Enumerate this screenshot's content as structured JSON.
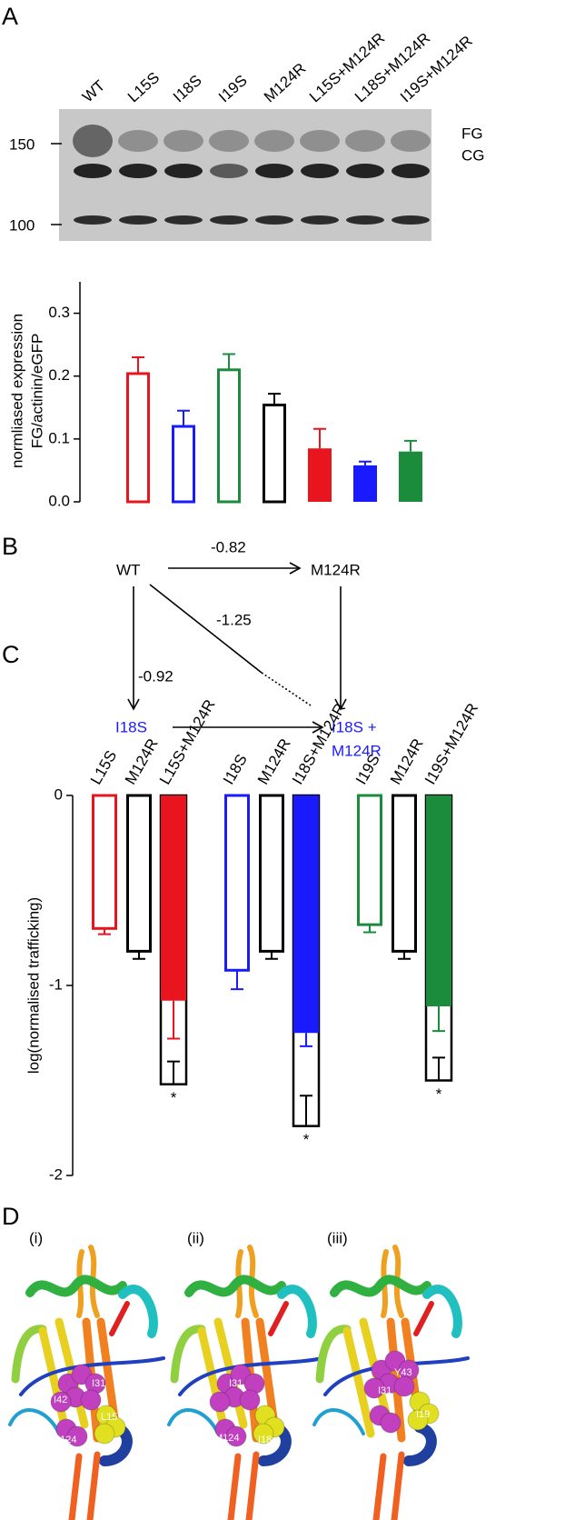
{
  "panels": [
    "A",
    "B",
    "C",
    "D"
  ],
  "blot": {
    "markers": [
      "150",
      "100"
    ],
    "bands": [
      "FG",
      "CG"
    ]
  },
  "chart_data": [
    {
      "type": "bar",
      "ylabel": [
        "normliased expression",
        "FG/actinin/eGFP"
      ],
      "categories": [
        "WT",
        "L15S",
        "I18S",
        "I19S",
        "M124R",
        "L15S+M124R",
        "L18S+M124R",
        "I19S+M124R"
      ],
      "values": [
        null,
        0.204,
        0.12,
        0.21,
        0.154,
        0.085,
        0.058,
        0.08
      ],
      "errors": [
        null,
        0.026,
        0.025,
        0.025,
        0.018,
        0.031,
        0.006,
        0.017
      ],
      "colors": [
        null,
        "#e8141e",
        "#1a1aff",
        "#1a8c3c",
        "#000000",
        "#e8141e",
        "#1a1aff",
        "#1a8c3c"
      ],
      "filled": [
        null,
        false,
        false,
        false,
        false,
        true,
        true,
        true
      ],
      "ylim": [
        0,
        0.35
      ],
      "yticks": [
        {
          "value": 0,
          "label": "0.0"
        },
        0.1,
        0.2,
        0.3
      ]
    },
    {
      "type": "bar",
      "ylabel": "log(normalised trafficking)",
      "categories": [
        "L15S",
        "M124R",
        "L15S+M124R",
        "I18S",
        "M124R",
        "I18S+M124R",
        "I19S",
        "M124R",
        "I19S+M124R"
      ],
      "values": [
        -0.7,
        -0.82,
        -1.08,
        -0.92,
        -0.82,
        -1.25,
        -0.68,
        -0.82,
        -1.11
      ],
      "errors": [
        0.03,
        0.04,
        0.2,
        0.1,
        0.04,
        0.07,
        0.04,
        0.04,
        0.13
      ],
      "colors": [
        "#e8141e",
        "#000000",
        "#e8141e",
        "#1a1aff",
        "#000000",
        "#1a1aff",
        "#1a8c3c",
        "#000000",
        "#1a8c3c"
      ],
      "filled": [
        false,
        false,
        true,
        false,
        false,
        true,
        false,
        false,
        true
      ],
      "predicted": [
        null,
        null,
        -1.52,
        null,
        null,
        -1.74,
        null,
        null,
        -1.5
      ],
      "predicted_errors": [
        null,
        null,
        0.12,
        null,
        null,
        0.16,
        null,
        null,
        0.12
      ],
      "markers": [
        null,
        null,
        "*",
        null,
        null,
        "*",
        null,
        null,
        "*"
      ],
      "ylim": [
        -2,
        0
      ],
      "yticks": [
        0,
        -1,
        -2
      ]
    }
  ],
  "diagram": {
    "nodes": [
      {
        "label": [
          "WT"
        ]
      },
      {
        "label": [
          "M124R"
        ]
      },
      {
        "label": [
          "I18S"
        ]
      },
      {
        "label": [
          "I18S +",
          "M124R"
        ]
      }
    ],
    "edges": [
      {
        "label": "-0.82"
      },
      {
        "label": "-1.25"
      },
      {
        "label": "-0.92"
      }
    ]
  },
  "structures": [
    {
      "label": "(i)",
      "residues": [
        "I42",
        "I31",
        "L15",
        "M124"
      ]
    },
    {
      "label": "(ii)",
      "residues": [
        "I31",
        "I126",
        "M124",
        "I18"
      ]
    },
    {
      "label": "(iii)",
      "residues": [
        "Y43",
        "I31",
        "I19"
      ]
    }
  ]
}
